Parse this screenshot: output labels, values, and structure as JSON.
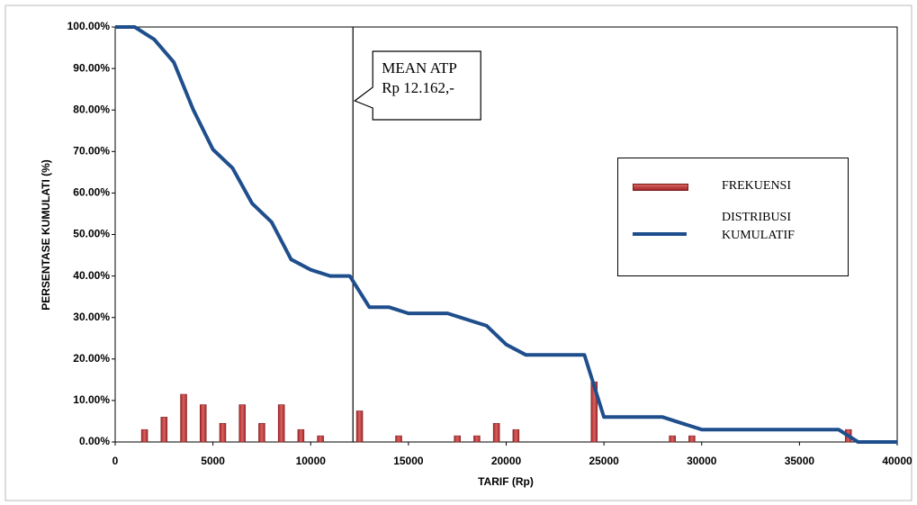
{
  "chart_data": {
    "type": "combo",
    "xlabel": "TARIF (Rp)",
    "ylabel": "PERSENTASE KUMULATI (%)",
    "xlim": [
      0,
      40000
    ],
    "xticks": [
      0,
      5000,
      10000,
      15000,
      20000,
      25000,
      30000,
      35000,
      40000
    ],
    "ylim": [
      0,
      100
    ],
    "yticks": [
      {
        "value": 0,
        "label": "0.00%"
      },
      {
        "value": 10,
        "label": "10.00%"
      },
      {
        "value": 20,
        "label": "20.00%"
      },
      {
        "value": 30,
        "label": "30.00%"
      },
      {
        "value": 40,
        "label": "40.00%"
      },
      {
        "value": 50,
        "label": "50.00%"
      },
      {
        "value": 60,
        "label": "60.00%"
      },
      {
        "value": 70,
        "label": "70.00%"
      },
      {
        "value": 80,
        "label": "80.00%"
      },
      {
        "value": 90,
        "label": "90.00%"
      },
      {
        "value": 100,
        "label": "100.00%"
      }
    ],
    "grid": false,
    "series": [
      {
        "name": "FREKUENSI",
        "type": "bar",
        "color": "#a3262a",
        "x": [
          1500,
          2500,
          3500,
          4500,
          5500,
          6500,
          7500,
          8500,
          9500,
          10500,
          12500,
          14500,
          17500,
          18500,
          19500,
          20500,
          24500,
          28500,
          29500,
          37500
        ],
        "values": [
          3,
          6,
          11.5,
          9,
          4.5,
          9,
          4.5,
          9,
          3,
          1.5,
          7.5,
          1.5,
          1.5,
          1.5,
          4.5,
          3,
          14.5,
          1.5,
          1.5,
          3
        ]
      },
      {
        "name": "DISTRIBUSI KUMULATIF",
        "type": "line",
        "color": "#1f4e8c",
        "x": [
          0,
          1000,
          2000,
          3000,
          4000,
          5000,
          6000,
          7000,
          8000,
          9000,
          10000,
          11000,
          12000,
          13000,
          14000,
          15000,
          16000,
          17000,
          18000,
          19000,
          20000,
          21000,
          22000,
          23000,
          24000,
          25000,
          26000,
          27000,
          28000,
          29000,
          30000,
          31000,
          32000,
          33000,
          34000,
          35000,
          36000,
          37000,
          38000,
          39000,
          40000
        ],
        "values": [
          100,
          100,
          97,
          91.5,
          80,
          70.5,
          66,
          57.5,
          53,
          44,
          41.5,
          40,
          40,
          32.5,
          32.5,
          31,
          31,
          31,
          29.5,
          28,
          23.5,
          21,
          21,
          21,
          21,
          6,
          6,
          6,
          6,
          4.5,
          3,
          3,
          3,
          3,
          3,
          3,
          3,
          3,
          0,
          0,
          0
        ]
      }
    ],
    "annotation": {
      "x": 12162,
      "lines": [
        "MEAN ATP",
        "Rp 12.162,-"
      ]
    }
  }
}
